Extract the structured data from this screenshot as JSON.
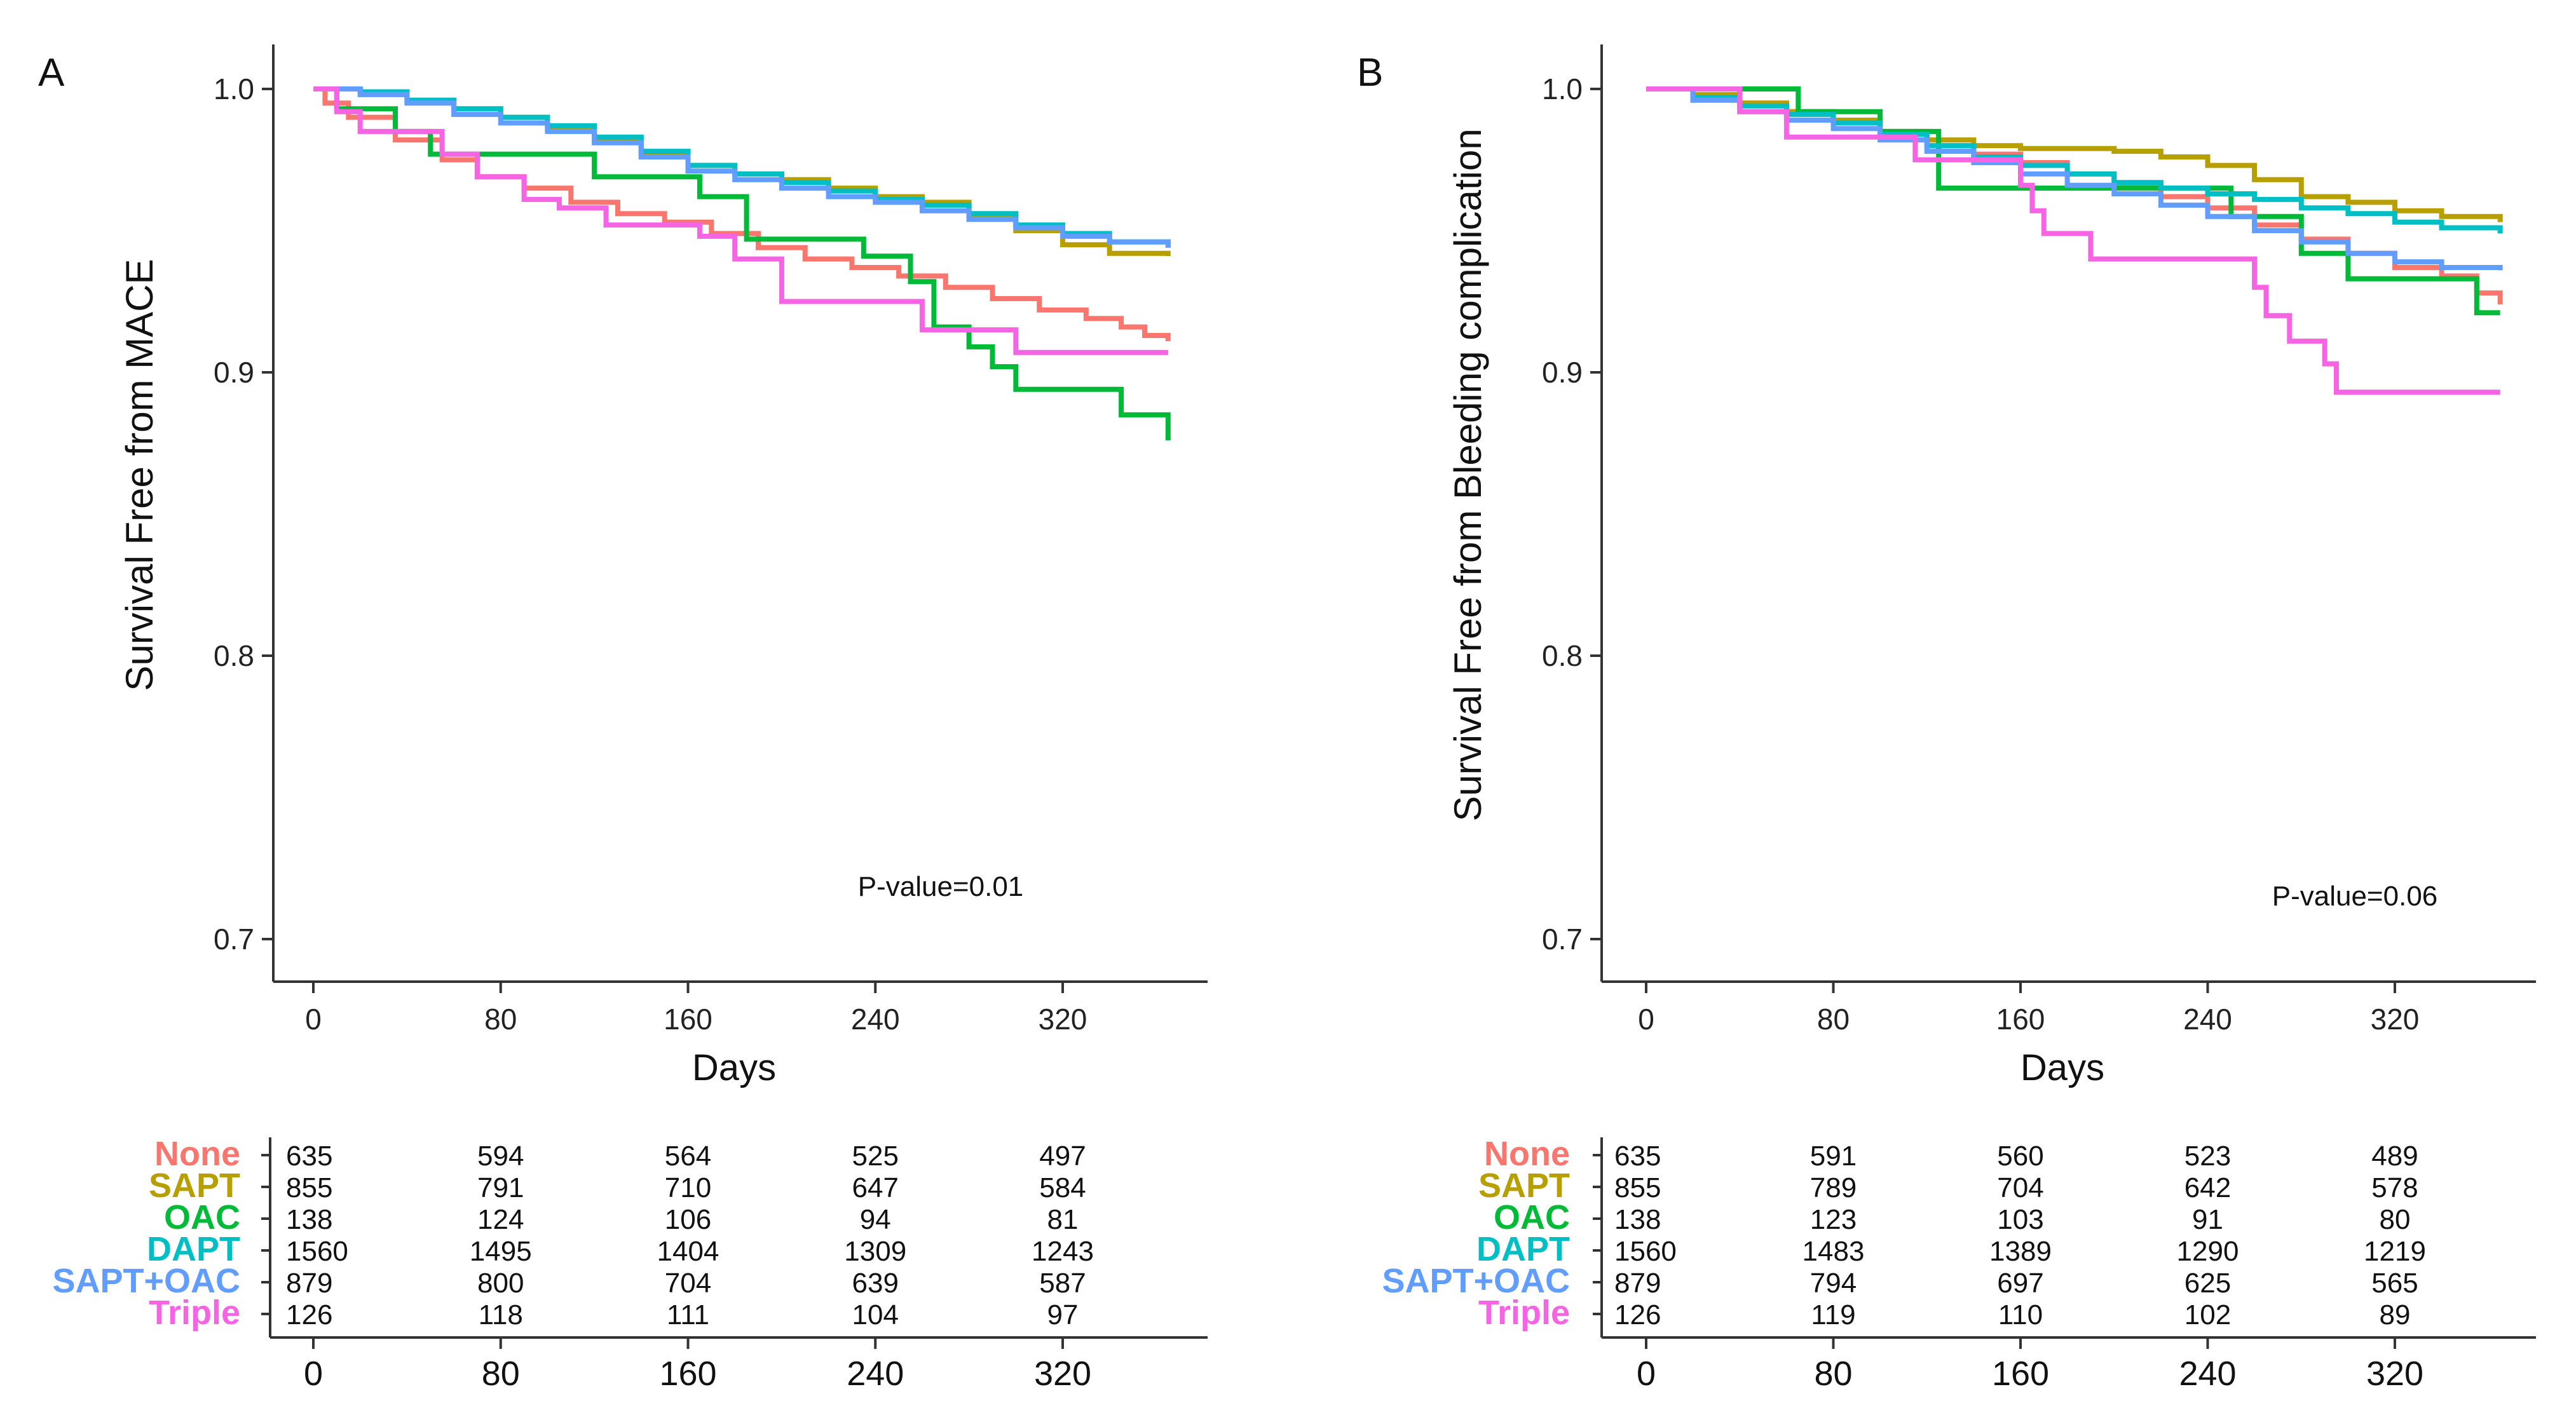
{
  "chart_data": [
    {
      "type": "line",
      "panel": "A",
      "xlabel": "Days",
      "ylabel": "Survival Free from MACE",
      "xlim": [
        0,
        365
      ],
      "ylim": [
        0.7,
        1.0
      ],
      "xticks": [
        0,
        80,
        160,
        240,
        320
      ],
      "yticks": [
        0.7,
        0.8,
        0.9,
        1.0
      ],
      "ytick_labels": [
        "0.7",
        "0.8",
        "0.9",
        "1.0"
      ],
      "annotation": "P-value=0.01",
      "series": [
        {
          "name": "None",
          "color": "#f8766d",
          "x": [
            0,
            5,
            15,
            35,
            55,
            70,
            90,
            110,
            130,
            150,
            170,
            190,
            210,
            230,
            250,
            270,
            290,
            310,
            330,
            345,
            355,
            365
          ],
          "y": [
            1.0,
            0.995,
            0.99,
            0.982,
            0.975,
            0.969,
            0.965,
            0.96,
            0.956,
            0.953,
            0.949,
            0.944,
            0.94,
            0.937,
            0.934,
            0.93,
            0.926,
            0.922,
            0.919,
            0.916,
            0.913,
            0.911
          ]
        },
        {
          "name": "SAPT",
          "color": "#b79f00",
          "x": [
            0,
            20,
            40,
            60,
            80,
            100,
            120,
            140,
            160,
            180,
            200,
            220,
            240,
            260,
            280,
            300,
            320,
            340,
            365
          ],
          "y": [
            1.0,
            0.999,
            0.996,
            0.993,
            0.99,
            0.986,
            0.982,
            0.977,
            0.973,
            0.97,
            0.968,
            0.965,
            0.962,
            0.96,
            0.955,
            0.95,
            0.945,
            0.942,
            0.941
          ]
        },
        {
          "name": "OAC",
          "color": "#00ba38",
          "x": [
            0,
            10,
            35,
            50,
            120,
            165,
            185,
            235,
            255,
            265,
            280,
            290,
            300,
            345,
            365
          ],
          "y": [
            1.0,
            0.993,
            0.985,
            0.977,
            0.969,
            0.962,
            0.947,
            0.941,
            0.932,
            0.916,
            0.909,
            0.902,
            0.894,
            0.885,
            0.876
          ]
        },
        {
          "name": "DAPT",
          "color": "#00bfc4",
          "x": [
            0,
            20,
            40,
            60,
            80,
            100,
            120,
            140,
            160,
            180,
            200,
            220,
            240,
            260,
            280,
            300,
            320,
            340,
            365
          ],
          "y": [
            1.0,
            0.999,
            0.996,
            0.993,
            0.99,
            0.987,
            0.983,
            0.978,
            0.973,
            0.97,
            0.967,
            0.964,
            0.961,
            0.959,
            0.956,
            0.952,
            0.949,
            0.946,
            0.944
          ]
        },
        {
          "name": "SAPT+OAC",
          "color": "#619cff",
          "x": [
            0,
            20,
            40,
            60,
            80,
            100,
            120,
            140,
            160,
            180,
            200,
            220,
            240,
            260,
            280,
            300,
            320,
            340,
            365
          ],
          "y": [
            1.0,
            0.998,
            0.995,
            0.991,
            0.988,
            0.985,
            0.981,
            0.976,
            0.971,
            0.968,
            0.965,
            0.962,
            0.96,
            0.957,
            0.954,
            0.951,
            0.948,
            0.946,
            0.944
          ]
        },
        {
          "name": "Triple",
          "color": "#f564e3",
          "x": [
            0,
            10,
            20,
            40,
            55,
            70,
            90,
            105,
            125,
            145,
            165,
            180,
            200,
            260,
            300,
            365
          ],
          "y": [
            1.0,
            0.992,
            0.985,
            0.985,
            0.977,
            0.969,
            0.961,
            0.958,
            0.952,
            0.952,
            0.948,
            0.94,
            0.925,
            0.915,
            0.907,
            0.907
          ]
        }
      ],
      "risk_table": {
        "times": [
          0,
          80,
          160,
          240,
          320
        ],
        "rows": [
          {
            "name": "None",
            "color": "#f8766d",
            "values": [
              "635",
              "594",
              "564",
              "525",
              "497"
            ]
          },
          {
            "name": "SAPT",
            "color": "#b79f00",
            "values": [
              "855",
              "791",
              "710",
              "647",
              "584"
            ]
          },
          {
            "name": "OAC",
            "color": "#00ba38",
            "values": [
              "138",
              "124",
              "106",
              "94",
              "81"
            ]
          },
          {
            "name": "DAPT",
            "color": "#00bfc4",
            "values": [
              "1560",
              "1495",
              "1404",
              "1309",
              "1243"
            ]
          },
          {
            "name": "SAPT+OAC",
            "color": "#619cff",
            "values": [
              "879",
              "800",
              "704",
              "639",
              "587"
            ]
          },
          {
            "name": "Triple",
            "color": "#f564e3",
            "values": [
              "126",
              "118",
              "111",
              "104",
              "97"
            ]
          }
        ]
      }
    },
    {
      "type": "line",
      "panel": "B",
      "xlabel": "Days",
      "ylabel": "Survival Free from Bleeding complication",
      "xlim": [
        0,
        365
      ],
      "ylim": [
        0.7,
        1.0
      ],
      "xticks": [
        0,
        80,
        160,
        240,
        320
      ],
      "yticks": [
        0.7,
        0.8,
        0.9,
        1.0
      ],
      "ytick_labels": [
        "0.7",
        "0.8",
        "0.9",
        "1.0"
      ],
      "annotation": "P-value=0.06",
      "series": [
        {
          "name": "None",
          "color": "#f8766d",
          "x": [
            0,
            20,
            40,
            60,
            80,
            100,
            120,
            140,
            160,
            180,
            200,
            220,
            240,
            260,
            280,
            300,
            320,
            340,
            355,
            365
          ],
          "y": [
            1.0,
            0.998,
            0.995,
            0.992,
            0.988,
            0.984,
            0.98,
            0.977,
            0.974,
            0.97,
            0.966,
            0.962,
            0.958,
            0.952,
            0.947,
            0.942,
            0.937,
            0.934,
            0.928,
            0.924
          ]
        },
        {
          "name": "SAPT",
          "color": "#b79f00",
          "x": [
            0,
            20,
            40,
            60,
            80,
            100,
            120,
            140,
            160,
            180,
            200,
            220,
            240,
            260,
            280,
            300,
            320,
            340,
            365
          ],
          "y": [
            1.0,
            0.998,
            0.995,
            0.992,
            0.989,
            0.985,
            0.982,
            0.98,
            0.979,
            0.979,
            0.978,
            0.976,
            0.973,
            0.968,
            0.962,
            0.96,
            0.957,
            0.955,
            0.953
          ]
        },
        {
          "name": "OAC",
          "color": "#00ba38",
          "x": [
            0,
            30,
            65,
            80,
            100,
            125,
            155,
            200,
            250,
            280,
            300,
            330,
            355,
            365
          ],
          "y": [
            1.0,
            1.0,
            0.992,
            0.992,
            0.985,
            0.965,
            0.965,
            0.965,
            0.955,
            0.942,
            0.933,
            0.933,
            0.921,
            0.921
          ]
        },
        {
          "name": "DAPT",
          "color": "#00bfc4",
          "x": [
            0,
            20,
            40,
            60,
            80,
            100,
            120,
            140,
            160,
            180,
            200,
            220,
            240,
            260,
            280,
            300,
            320,
            340,
            365
          ],
          "y": [
            1.0,
            0.997,
            0.994,
            0.991,
            0.988,
            0.984,
            0.98,
            0.976,
            0.973,
            0.97,
            0.967,
            0.965,
            0.963,
            0.961,
            0.958,
            0.956,
            0.953,
            0.951,
            0.949
          ]
        },
        {
          "name": "SAPT+OAC",
          "color": "#619cff",
          "x": [
            0,
            20,
            40,
            60,
            80,
            100,
            120,
            140,
            160,
            180,
            200,
            220,
            240,
            260,
            280,
            300,
            320,
            340,
            365
          ],
          "y": [
            1.0,
            0.996,
            0.992,
            0.989,
            0.986,
            0.982,
            0.978,
            0.974,
            0.97,
            0.966,
            0.963,
            0.959,
            0.955,
            0.95,
            0.946,
            0.942,
            0.939,
            0.937,
            0.936
          ]
        },
        {
          "name": "Triple",
          "color": "#f564e3",
          "x": [
            0,
            40,
            60,
            90,
            115,
            150,
            160,
            165,
            170,
            190,
            230,
            260,
            265,
            275,
            290,
            295,
            365
          ],
          "y": [
            1.0,
            0.992,
            0.983,
            0.983,
            0.975,
            0.975,
            0.966,
            0.957,
            0.949,
            0.94,
            0.94,
            0.93,
            0.92,
            0.911,
            0.903,
            0.893,
            0.893
          ]
        }
      ],
      "risk_table": {
        "times": [
          0,
          80,
          160,
          240,
          320
        ],
        "rows": [
          {
            "name": "None",
            "color": "#f8766d",
            "values": [
              "635",
              "591",
              "560",
              "523",
              "489"
            ]
          },
          {
            "name": "SAPT",
            "color": "#b79f00",
            "values": [
              "855",
              "789",
              "704",
              "642",
              "578"
            ]
          },
          {
            "name": "OAC",
            "color": "#00ba38",
            "values": [
              "138",
              "123",
              "103",
              "91",
              "80"
            ]
          },
          {
            "name": "DAPT",
            "color": "#00bfc4",
            "values": [
              "1560",
              "1483",
              "1389",
              "1290",
              "1219"
            ]
          },
          {
            "name": "SAPT+OAC",
            "color": "#619cff",
            "values": [
              "879",
              "794",
              "697",
              "625",
              "565"
            ]
          },
          {
            "name": "Triple",
            "color": "#f564e3",
            "values": [
              "126",
              "119",
              "110",
              "102",
              "89"
            ]
          }
        ]
      }
    }
  ]
}
